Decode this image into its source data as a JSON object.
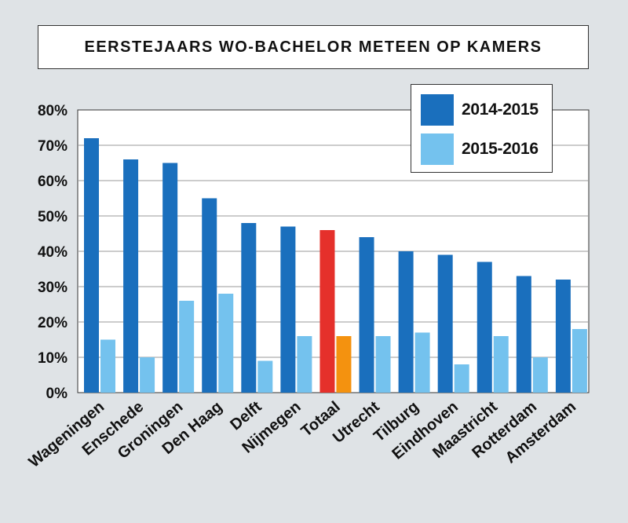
{
  "colors": {
    "series1": "#1a6fbd",
    "series2": "#74c2ee",
    "highlight1": "#e5302b",
    "highlight2": "#f4920f"
  },
  "chart_data": {
    "type": "bar",
    "title": "EERSTEJAARS WO-BACHELOR METEEN OP KAMERS",
    "categories": [
      "Wageningen",
      "Enschede",
      "Groningen",
      "Den Haag",
      "Delft",
      "Nijmegen",
      "Totaal",
      "Utrecht",
      "Tilburg",
      "Eindhoven",
      "Maastricht",
      "Rotterdam",
      "Amsterdam"
    ],
    "series": [
      {
        "name": "2014-2015",
        "values": [
          72,
          66,
          65,
          55,
          48,
          47,
          46,
          44,
          40,
          39,
          37,
          33,
          32
        ]
      },
      {
        "name": "2015-2016",
        "values": [
          15,
          10,
          26,
          28,
          9,
          16,
          16,
          16,
          17,
          8,
          16,
          10,
          18
        ]
      }
    ],
    "highlight_category": "Totaal",
    "ylim": [
      0,
      80
    ],
    "yticks": [
      "0%",
      "10%",
      "20%",
      "30%",
      "40%",
      "50%",
      "60%",
      "70%",
      "80%"
    ],
    "grid": true,
    "legend_position": "top-right"
  }
}
